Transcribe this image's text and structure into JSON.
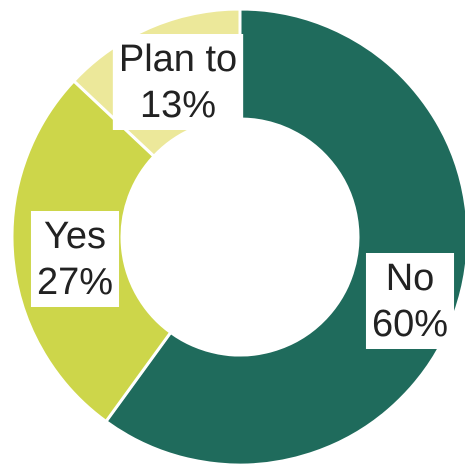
{
  "chart_data": {
    "type": "pie",
    "variant": "donut",
    "start": "top",
    "direction": "clockwise",
    "slices": [
      {
        "label": "No",
        "value": 60,
        "value_label": "60%",
        "color": "#1f6b5c"
      },
      {
        "label": "Yes",
        "value": 27,
        "value_label": "27%",
        "color": "#cdd64a"
      },
      {
        "label": "Plan to",
        "value": 13,
        "value_label": "13%",
        "color": "#ece89a"
      }
    ],
    "separator_color": "#ffffff",
    "label_box_color": "#ffffff"
  }
}
